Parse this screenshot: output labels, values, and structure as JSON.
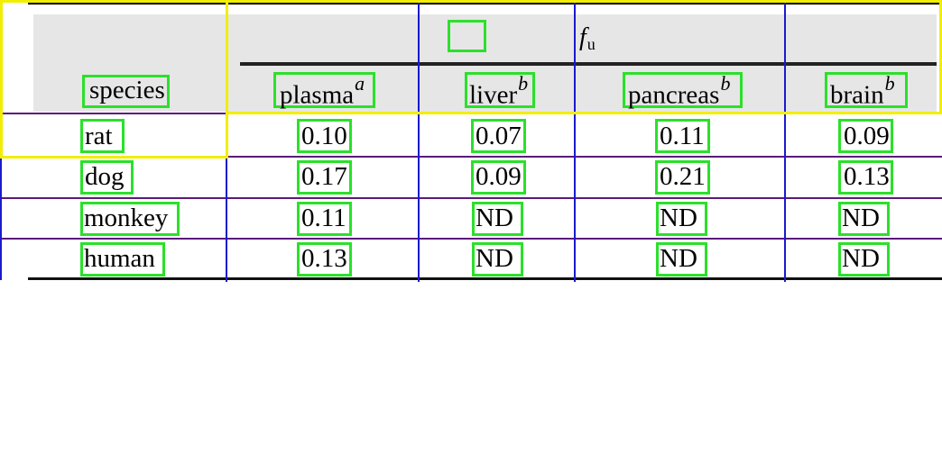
{
  "table": {
    "group_header": {
      "symbol": "f",
      "subscript": "u"
    },
    "columns": [
      {
        "label": "species",
        "superscript": ""
      },
      {
        "label": "plasma",
        "superscript": "a"
      },
      {
        "label": "liver",
        "superscript": "b"
      },
      {
        "label": "pancreas",
        "superscript": "b"
      },
      {
        "label": "brain",
        "superscript": "b"
      }
    ],
    "rows": [
      {
        "species": "rat",
        "values": [
          "0.10",
          "0.07",
          "0.11",
          "0.09"
        ]
      },
      {
        "species": "dog",
        "values": [
          "0.17",
          "0.09",
          "0.21",
          "0.13"
        ]
      },
      {
        "species": "monkey",
        "values": [
          "0.11",
          "ND",
          "ND",
          "ND"
        ]
      },
      {
        "species": "human",
        "values": [
          "0.13",
          "ND",
          "ND",
          "ND"
        ]
      }
    ]
  },
  "colors": {
    "header_background": "#e6e6e6",
    "yellow_box": "#f2ee00",
    "green_box": "#2be02b",
    "blue_line": "#1a1acc",
    "purple_line": "#5a1a7a"
  }
}
